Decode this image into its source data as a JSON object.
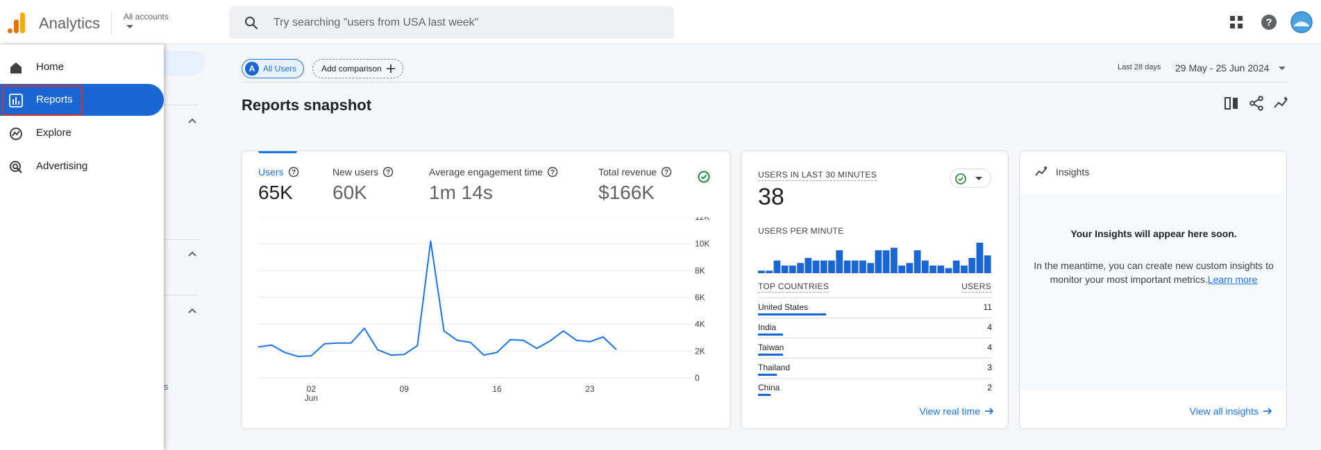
{
  "header": {
    "brand": "Analytics",
    "accounts_label": "All accounts",
    "search_placeholder": "Try searching \"users from USA last week\""
  },
  "sidebar": {
    "items": [
      {
        "label": "Home",
        "icon": "home-icon"
      },
      {
        "label": "Reports",
        "icon": "bar-chart-icon",
        "active": true
      },
      {
        "label": "Explore",
        "icon": "explore-icon"
      },
      {
        "label": "Advertising",
        "icon": "advertising-icon"
      }
    ],
    "partial_text": "s"
  },
  "comparison": {
    "all_users_badge": "A",
    "all_users_label": "All Users",
    "add_comparison_label": "Add comparison"
  },
  "date": {
    "short": "Last 28 days",
    "range": "29 May - 25 Jun 2024"
  },
  "page_title": "Reports snapshot",
  "metrics": [
    {
      "label": "Users",
      "value": "65K",
      "selected": true
    },
    {
      "label": "New users",
      "value": "60K"
    },
    {
      "label": "Average engagement time",
      "value": "1m 14s"
    },
    {
      "label": "Total revenue",
      "value": "$166K"
    }
  ],
  "chart_data": {
    "type": "line",
    "series": [
      {
        "values": [
          2300,
          2450,
          1900,
          1600,
          1650,
          2550,
          2600,
          2600,
          3700,
          2100,
          1700,
          1750,
          2400,
          10200,
          3500,
          2800,
          2650,
          1700,
          1900,
          2850,
          2800,
          2200,
          2750,
          3500,
          2800,
          2700,
          3050,
          2100
        ]
      }
    ],
    "x_ticks": [
      {
        "index": 4,
        "label": "02",
        "sublabel": "Jun"
      },
      {
        "index": 11,
        "label": "09"
      },
      {
        "index": 18,
        "label": "16"
      },
      {
        "index": 25,
        "label": "23"
      }
    ],
    "y_ticks": [
      "12K",
      "10K",
      "8K",
      "6K",
      "4K",
      "2K",
      "0"
    ],
    "ylim": [
      0,
      12000
    ],
    "grid": true,
    "color": "#1a73e8"
  },
  "realtime": {
    "title": "USERS IN LAST 30 MINUTES",
    "value": "38",
    "per_minute_label": "USERS PER MINUTE",
    "per_minute": [
      1,
      1,
      5,
      3,
      3,
      4,
      6,
      5,
      5,
      5,
      9,
      5,
      5,
      5,
      4,
      9,
      9,
      10,
      3,
      4,
      9,
      5,
      3,
      3,
      2,
      5,
      3,
      6,
      12,
      7
    ],
    "countries_header": "TOP COUNTRIES",
    "users_header": "USERS",
    "countries": [
      {
        "name": "United States",
        "users": "11",
        "share": 1.0
      },
      {
        "name": "India",
        "users": "4",
        "share": 0.36
      },
      {
        "name": "Taiwan",
        "users": "4",
        "share": 0.36
      },
      {
        "name": "Thailand",
        "users": "3",
        "share": 0.27
      },
      {
        "name": "China",
        "users": "2",
        "share": 0.18
      }
    ],
    "view_link": "View real time"
  },
  "insights": {
    "title": "Insights",
    "heading": "Your Insights will appear here soon.",
    "body": "In the meantime, you can create new custom insights to monitor your most important metrics.",
    "learn_more": "Learn more",
    "view_all": "View all insights"
  },
  "colors": {
    "accent": "#1a73e8",
    "nav_active": "#1a66d2",
    "highlight": "#d93025"
  }
}
